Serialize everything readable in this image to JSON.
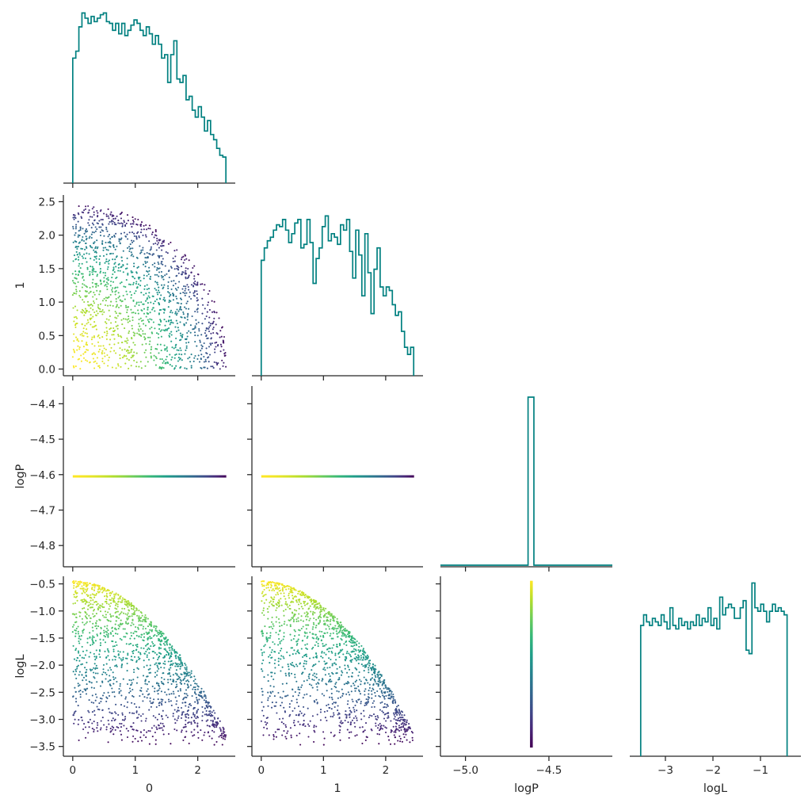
{
  "chart_data": {
    "type": "corner",
    "description_parameters": [
      "0",
      "1",
      "logP",
      "logL"
    ],
    "hist_color": "#008080",
    "scatter_colormap": "viridis",
    "panels": [
      {
        "id": "p00",
        "type": "histogram",
        "param": "0",
        "xlim": [
          -0.15,
          2.6
        ],
        "hist_range": [
          0.0,
          2.45
        ],
        "bins": 50,
        "counts": [
          0.72,
          0.76,
          0.9,
          0.98,
          0.95,
          0.92,
          0.96,
          0.93,
          0.95,
          0.97,
          0.98,
          0.93,
          0.92,
          0.88,
          0.92,
          0.86,
          0.92,
          0.85,
          0.88,
          0.91,
          0.94,
          0.92,
          0.88,
          0.85,
          0.9,
          0.86,
          0.8,
          0.85,
          0.8,
          0.72,
          0.74,
          0.58,
          0.74,
          0.82,
          0.6,
          0.58,
          0.62,
          0.48,
          0.5,
          0.42,
          0.38,
          0.44,
          0.38,
          0.3,
          0.36,
          0.28,
          0.25,
          0.2,
          0.16,
          0.15
        ],
        "ytick_values": [],
        "xtick_values": [
          0,
          1,
          2
        ],
        "show_xtick_labels": false
      },
      {
        "id": "p10",
        "type": "scatter",
        "xparam": "0",
        "yparam": "1",
        "xlim": [
          -0.15,
          2.6
        ],
        "ylim": [
          -0.1,
          2.6
        ],
        "xtick_values": [
          0,
          1,
          2
        ],
        "ytick_values": [
          0.0,
          0.5,
          1.0,
          1.5,
          2.0,
          2.5
        ],
        "ytick_labels": [
          "0.0",
          "0.5",
          "1.0",
          "1.5",
          "2.0",
          "2.5"
        ],
        "ylabel": "1",
        "show_xtick_labels": false
      },
      {
        "id": "p11",
        "type": "histogram",
        "param": "1",
        "xlim": [
          -0.15,
          2.6
        ],
        "hist_range": [
          0.0,
          2.45
        ],
        "bins": 50,
        "counts": [
          0.65,
          0.72,
          0.76,
          0.78,
          0.82,
          0.85,
          0.84,
          0.88,
          0.82,
          0.75,
          0.8,
          0.86,
          0.88,
          0.72,
          0.74,
          0.88,
          0.75,
          0.52,
          0.66,
          0.72,
          0.84,
          0.9,
          0.76,
          0.8,
          0.78,
          0.74,
          0.85,
          0.82,
          0.88,
          0.7,
          0.55,
          0.82,
          0.68,
          0.45,
          0.8,
          0.58,
          0.35,
          0.6,
          0.72,
          0.5,
          0.45,
          0.5,
          0.48,
          0.4,
          0.34,
          0.36,
          0.25,
          0.16,
          0.12,
          0.16
        ],
        "ytick_values": [],
        "xtick_values": [
          0,
          1,
          2
        ],
        "show_xtick_labels": false
      },
      {
        "id": "p20",
        "type": "scatter-line",
        "xparam": "0",
        "yparam": "logP",
        "xlim": [
          -0.15,
          2.6
        ],
        "ylim": [
          -4.86,
          -4.35
        ],
        "line_y": -4.605,
        "line_x_range": [
          0.0,
          2.45
        ],
        "xtick_values": [
          0,
          1,
          2
        ],
        "ytick_values": [
          -4.8,
          -4.7,
          -4.6,
          -4.5,
          -4.4
        ],
        "ytick_labels": [
          "−4.8",
          "−4.7",
          "−4.6",
          "−4.5",
          "−4.4"
        ],
        "ylabel": "logP",
        "show_xtick_labels": false
      },
      {
        "id": "p21",
        "type": "scatter-line",
        "xparam": "1",
        "yparam": "logP",
        "xlim": [
          -0.15,
          2.6
        ],
        "ylim": [
          -4.86,
          -4.35
        ],
        "line_y": -4.605,
        "line_x_range": [
          0.0,
          2.45
        ],
        "xtick_values": [
          0,
          1,
          2
        ],
        "ytick_values": [
          -4.8,
          -4.7,
          -4.6,
          -4.5,
          -4.4
        ],
        "ytick_labels": [],
        "show_xtick_labels": false
      },
      {
        "id": "p22",
        "type": "histogram-spike",
        "param": "logP",
        "xlim": [
          -5.15,
          -4.12
        ],
        "spike_x": [
          -4.625,
          -4.59
        ],
        "spike_height": 1.0,
        "xtick_values": [
          -5.0,
          -4.5
        ],
        "show_xtick_labels": false
      },
      {
        "id": "p30",
        "type": "scatter",
        "xparam": "0",
        "yparam": "logL",
        "xlim": [
          -0.15,
          2.6
        ],
        "ylim": [
          -3.68,
          -0.36
        ],
        "xtick_values": [
          0,
          1,
          2
        ],
        "xtick_labels": [
          "0",
          "1",
          "2"
        ],
        "ytick_values": [
          -3.5,
          -3.0,
          -2.5,
          -2.0,
          -1.5,
          -1.0,
          -0.5
        ],
        "ytick_labels": [
          "−3.5",
          "−3.0",
          "−2.5",
          "−2.0",
          "−1.5",
          "−1.0",
          "−0.5"
        ],
        "xlabel": "0",
        "ylabel": "logL",
        "show_xtick_labels": true
      },
      {
        "id": "p31",
        "type": "scatter",
        "xparam": "1",
        "yparam": "logL",
        "xlim": [
          -0.15,
          2.6
        ],
        "ylim": [
          -3.68,
          -0.36
        ],
        "xtick_values": [
          0,
          1,
          2
        ],
        "xtick_labels": [
          "0",
          "1",
          "2"
        ],
        "ytick_values": [
          -3.5,
          -3.0,
          -2.5,
          -2.0,
          -1.5,
          -1.0,
          -0.5
        ],
        "xlabel": "1",
        "show_xtick_labels": true
      },
      {
        "id": "p32",
        "type": "scatter-vline",
        "xparam": "logP",
        "yparam": "logL",
        "xlim": [
          -5.15,
          -4.12
        ],
        "ylim": [
          -3.68,
          -0.36
        ],
        "line_x": -4.605,
        "line_y_range": [
          -3.52,
          -0.45
        ],
        "xtick_values": [
          -5.0,
          -4.5
        ],
        "xtick_labels": [
          "−5.0",
          "−4.5"
        ],
        "ytick_values": [
          -3.5,
          -3.0,
          -2.5,
          -2.0,
          -1.5,
          -1.0,
          -0.5
        ],
        "xlabel": "logP",
        "show_xtick_labels": true
      },
      {
        "id": "p33",
        "type": "histogram",
        "param": "logL",
        "xlim": [
          -3.75,
          -0.15
        ],
        "hist_range": [
          -3.52,
          -0.44
        ],
        "bins": 50,
        "counts": [
          0.74,
          0.8,
          0.76,
          0.74,
          0.78,
          0.76,
          0.74,
          0.8,
          0.76,
          0.72,
          0.84,
          0.74,
          0.72,
          0.78,
          0.74,
          0.76,
          0.72,
          0.76,
          0.74,
          0.8,
          0.74,
          0.78,
          0.76,
          0.84,
          0.74,
          0.78,
          0.72,
          0.9,
          0.8,
          0.84,
          0.86,
          0.84,
          0.78,
          0.78,
          0.84,
          0.88,
          0.6,
          0.58,
          0.98,
          0.84,
          0.82,
          0.86,
          0.82,
          0.76,
          0.82,
          0.86,
          0.82,
          0.84,
          0.82,
          0.8
        ],
        "xtick_values": [
          -3,
          -2,
          -1
        ],
        "xtick_labels": [
          "−3",
          "−2",
          "−1"
        ],
        "xlabel": "logL",
        "show_xtick_labels": true
      }
    ]
  }
}
